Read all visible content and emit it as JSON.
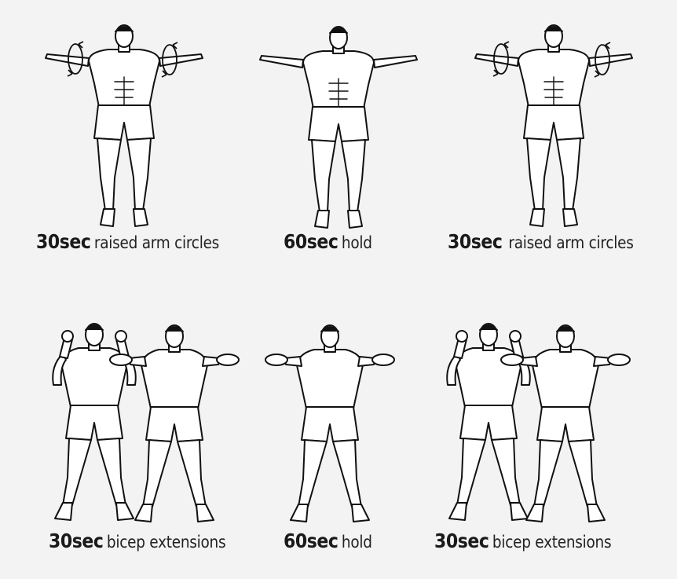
{
  "rows": [
    {
      "panels": [
        {
          "duration": "30sec",
          "activity": "raised arm circles"
        },
        {
          "duration": "60sec",
          "activity": "hold"
        },
        {
          "duration": "30sec",
          "activity": "raised arm circles"
        }
      ]
    },
    {
      "panels": [
        {
          "duration": "30sec",
          "activity": "bicep extensions"
        },
        {
          "duration": "60sec",
          "activity": "hold"
        },
        {
          "duration": "30sec",
          "activity": "bicep extensions"
        }
      ]
    }
  ]
}
